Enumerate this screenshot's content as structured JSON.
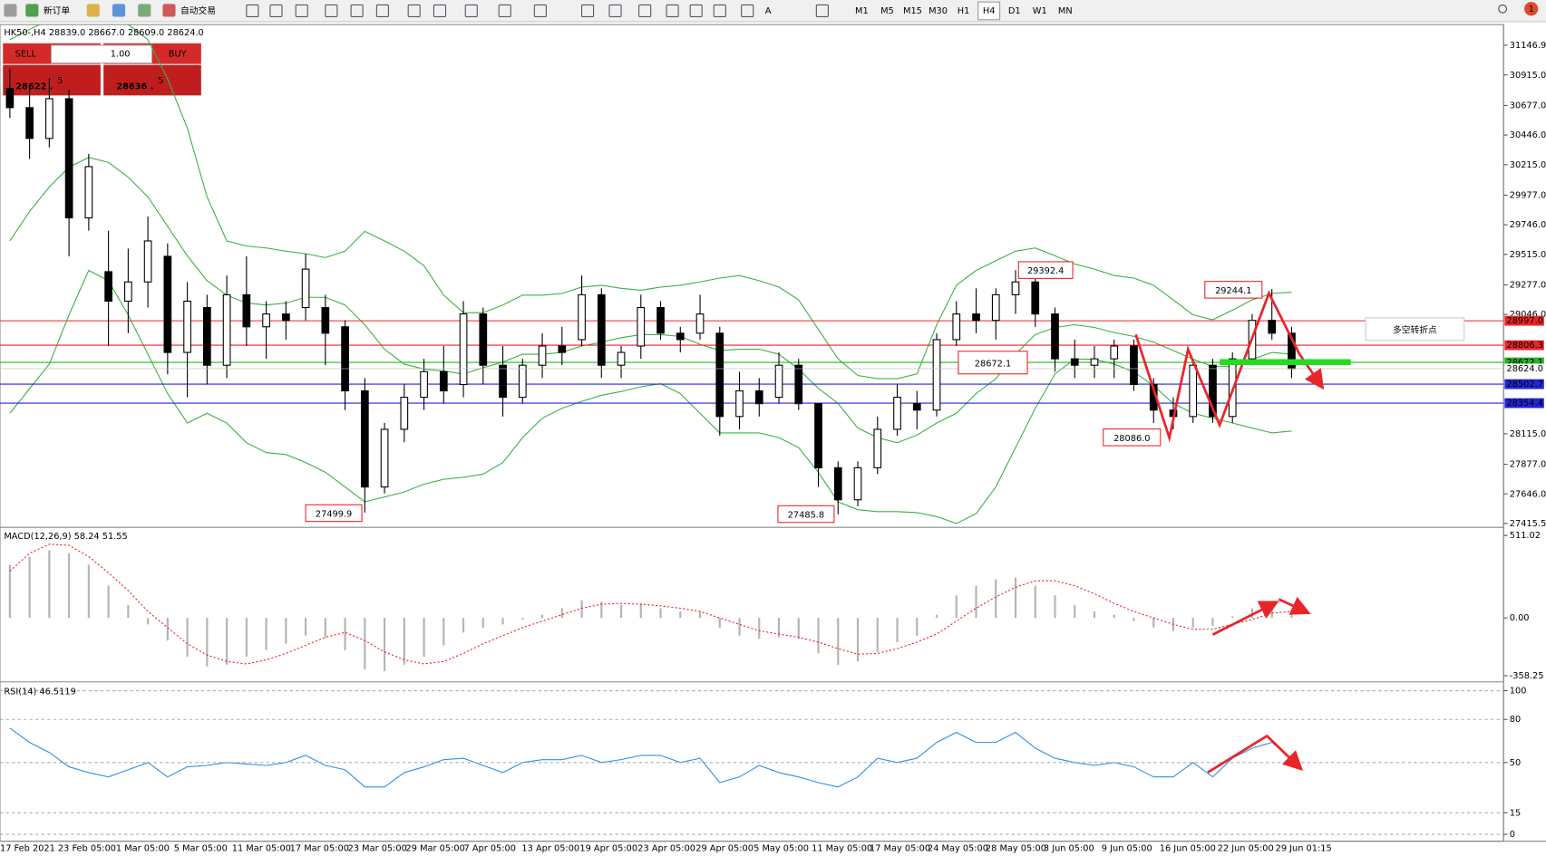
{
  "toolbar": {
    "new_order": "新订单",
    "auto_trading": "自动交易",
    "text_tool": "A",
    "timeframes": [
      "M1",
      "M5",
      "M15",
      "M30",
      "H1",
      "H4",
      "D1",
      "W1",
      "MN"
    ],
    "active_timeframe": 5,
    "notifications": "1"
  },
  "trade_panel": {
    "sell": "SELL",
    "lots": "1.00",
    "buy": "BUY",
    "bid": {
      "main": "28622 .",
      "pip": "5"
    },
    "ask": {
      "main": "28636 .",
      "pip": "5"
    }
  },
  "time_axis": {
    "labels": [
      "17 Feb 2021",
      "23 Feb 05:00",
      "1 Mar 05:00",
      "5 Mar 05:00",
      "11 Mar 05:00",
      "17 Mar 05:00",
      "23 Mar 05:00",
      "29 Mar 05:00",
      "7 Apr 05:00",
      "13 Apr 05:00",
      "19 Apr 05:00",
      "23 Apr 05:00",
      "29 Apr 05:00",
      "5 May 05:00",
      "11 May 05:00",
      "17 May 05:00",
      "24 May 05:00",
      "28 May 05:00",
      "3 Jun 05:00",
      "9 Jun 05:00",
      "16 Jun 05:00",
      "22 Jun 05:00",
      "29 Jun 01:15"
    ]
  },
  "chart_data": [
    {
      "type": "candlestick",
      "title": "HK50-,H4  28839.0 28667.0 28609.0 28624.0",
      "categories": [
        null,
        null,
        null,
        null,
        null,
        null,
        null,
        null,
        null,
        null,
        null,
        null,
        null,
        null,
        null,
        null,
        null,
        null,
        null,
        null,
        null,
        null,
        null,
        null,
        null,
        null,
        null,
        null,
        null,
        null,
        null,
        null,
        null,
        null,
        null,
        null,
        null,
        null,
        null,
        null,
        null,
        null,
        null,
        null,
        null,
        null,
        null,
        null,
        null,
        null,
        null,
        null,
        null,
        null,
        null,
        null,
        null,
        null,
        null,
        null,
        null,
        null,
        null,
        null,
        null,
        null
      ],
      "open": [
        30810,
        30660,
        30420,
        30730,
        29800,
        29380,
        29150,
        29300,
        29500,
        28750,
        29100,
        28650,
        29200,
        28950,
        29050,
        29100,
        29100,
        28950,
        28450,
        27700,
        28150,
        28400,
        28600,
        28500,
        29050,
        28650,
        28400,
        28650,
        28800,
        28850,
        29200,
        28650,
        28800,
        29100,
        28900,
        28900,
        28900,
        28250,
        28450,
        28400,
        28650,
        28350,
        27850,
        27600,
        27850,
        28150,
        28350,
        28300,
        28850,
        29050,
        29000,
        29200,
        29300,
        29050,
        28700,
        28650,
        28700,
        28800,
        28500,
        28300,
        28250,
        28650,
        28250,
        28700,
        29000,
        28900
      ],
      "high": [
        30960,
        30810,
        30890,
        30800,
        30300,
        29700,
        29560,
        29810,
        29600,
        29300,
        29200,
        29350,
        29500,
        29150,
        29150,
        29520,
        29200,
        29000,
        28550,
        28200,
        28500,
        28700,
        28800,
        29150,
        29100,
        28800,
        28700,
        28900,
        28950,
        29350,
        29250,
        28800,
        29200,
        29150,
        28950,
        29200,
        28950,
        28600,
        28550,
        28750,
        28700,
        28350,
        27900,
        27900,
        28250,
        28500,
        28450,
        28900,
        29150,
        29250,
        29250,
        29392,
        29350,
        29100,
        28850,
        28800,
        28850,
        28850,
        28550,
        28400,
        28700,
        28700,
        28750,
        29050,
        29244,
        28950
      ],
      "low": [
        30580,
        30260,
        30350,
        29500,
        29700,
        28800,
        28900,
        29100,
        28580,
        28400,
        28500,
        28550,
        28800,
        28700,
        28850,
        29000,
        28650,
        28300,
        27500,
        27650,
        28050,
        28300,
        28350,
        28400,
        28500,
        28250,
        28350,
        28550,
        28650,
        28800,
        28550,
        28550,
        28700,
        28850,
        28750,
        28850,
        28100,
        28150,
        28250,
        28350,
        28300,
        27700,
        27486,
        27550,
        27800,
        28100,
        28150,
        28250,
        28800,
        28900,
        28850,
        29050,
        28950,
        28600,
        28550,
        28550,
        28550,
        28450,
        28200,
        28150,
        28200,
        28200,
        28200,
        28650,
        28850,
        28550
      ],
      "close": [
        30660,
        30420,
        30730,
        29800,
        30200,
        29150,
        29300,
        29620,
        28750,
        29150,
        28650,
        29200,
        28950,
        29050,
        29000,
        29400,
        28900,
        28450,
        27700,
        28150,
        28400,
        28600,
        28450,
        29050,
        28650,
        28400,
        28650,
        28800,
        28750,
        29200,
        28650,
        28750,
        29100,
        28900,
        28850,
        29050,
        28250,
        28450,
        28350,
        28650,
        28350,
        27850,
        27600,
        27850,
        28150,
        28400,
        28300,
        28850,
        29050,
        29000,
        29200,
        29300,
        29050,
        28700,
        28650,
        28700,
        28800,
        28500,
        28300,
        28250,
        28650,
        28250,
        28700,
        29000,
        28900,
        28624
      ],
      "bands": {
        "color": "#3cb043",
        "upper": [
          31190,
          31270,
          31346,
          31346,
          31346,
          31330,
          31310,
          31190,
          30885,
          30500,
          29964,
          29620,
          29580,
          29565,
          29540,
          29520,
          29490,
          29540,
          29695,
          29620,
          29540,
          29427,
          29197,
          29060,
          29060,
          29120,
          29197,
          29197,
          29210,
          29260,
          29274,
          29250,
          29235,
          29260,
          29274,
          29300,
          29330,
          29350,
          29310,
          29260,
          29160,
          28930,
          28700,
          28570,
          28545,
          28545,
          28582,
          28966,
          29274,
          29390,
          29465,
          29540,
          29565,
          29504,
          29440,
          29400,
          29350,
          29330,
          29274,
          29160,
          29043,
          29005,
          29080,
          29160,
          29210,
          29220
        ],
        "middle": [
          29620,
          29850,
          30041,
          30195,
          30271,
          30233,
          30118,
          29964,
          29734,
          29504,
          29310,
          29197,
          29135,
          29120,
          29135,
          29180,
          29180,
          29120,
          28966,
          28775,
          28659,
          28620,
          28605,
          28582,
          28630,
          28675,
          28736,
          28736,
          28750,
          28800,
          28830,
          28865,
          28889,
          28889,
          28875,
          28813,
          28765,
          28775,
          28775,
          28736,
          28620,
          28470,
          28352,
          28160,
          28085,
          28045,
          28105,
          28199,
          28275,
          28429,
          28545,
          28736,
          28889,
          28945,
          28966,
          28945,
          28905,
          28875,
          28830,
          28765,
          28697,
          28640,
          28640,
          28697,
          28750,
          28736
        ],
        "lower": [
          28275,
          28467,
          28659,
          29043,
          29390,
          29310,
          29043,
          28736,
          28429,
          28199,
          28275,
          28199,
          28045,
          27968,
          27953,
          27891,
          27815,
          27700,
          27584,
          27622,
          27661,
          27722,
          27760,
          27776,
          27800,
          27891,
          28085,
          28237,
          28314,
          28368,
          28415,
          28445,
          28482,
          28506,
          28429,
          28275,
          28122,
          28122,
          28122,
          28085,
          28007,
          27815,
          27584,
          27523,
          27508,
          27508,
          27500,
          27469,
          27415,
          27492,
          27700,
          28007,
          28314,
          28582,
          28697,
          28697,
          28659,
          28598,
          28490,
          28352,
          28275,
          28237,
          28199,
          28160,
          28122,
          28137
        ]
      },
      "ylim": [
        27392.5,
        31308.1
      ],
      "yticks": [
        31146.9,
        {
          "value": 30915,
          "label": "30915.0"
        },
        {
          "value": 30677,
          "label": "30677.0"
        },
        {
          "value": 30446,
          "label": "30446.0"
        },
        {
          "value": 30215,
          "label": "30215.0"
        },
        {
          "value": 29977,
          "label": "29977.0"
        },
        {
          "value": 29746,
          "label": "29746.0"
        },
        {
          "value": 29515,
          "label": "29515.0"
        },
        {
          "value": 29277,
          "label": "29277.0"
        },
        {
          "value": 29046,
          "label": "29046.0"
        },
        {
          "value": 28115,
          "label": "28115.0"
        },
        {
          "value": 27877,
          "label": "27877.0"
        },
        {
          "value": 27646,
          "label": "27646.0"
        },
        27415.5
      ],
      "levels": [
        {
          "value": 28997,
          "label": "28997.0",
          "color": "#e8262a"
        },
        {
          "value": 28806.3,
          "label": "28806.3",
          "color": "#e8262a"
        },
        {
          "value": 28672.1,
          "label": "28672.1",
          "color": "#27b327"
        },
        {
          "value": 28502.7,
          "label": "28502.7",
          "color": "#2424d8"
        },
        {
          "value": 28354.4,
          "label": "28354.4",
          "color": "#2424d8"
        }
      ],
      "current": {
        "value": 28624,
        "label": "28624.0"
      },
      "annotations": [
        "29392.4",
        "29244.1",
        "28672.1",
        "28086.0",
        "27499.9",
        "27485.8",
        "多空转折点"
      ]
    },
    {
      "type": "macd",
      "title": "MACD(12,26,9) 58.24 51.55",
      "histogram": [
        330,
        380,
        420,
        400,
        330,
        200,
        80,
        -40,
        -140,
        -240,
        -300,
        -290,
        -240,
        -200,
        -160,
        -110,
        -120,
        -200,
        -320,
        -330,
        -290,
        -240,
        -170,
        -90,
        -60,
        -40,
        -10,
        20,
        60,
        110,
        100,
        80,
        90,
        60,
        40,
        40,
        -60,
        -110,
        -130,
        -120,
        -130,
        -220,
        -290,
        -270,
        -210,
        -150,
        -110,
        20,
        140,
        200,
        240,
        250,
        200,
        140,
        80,
        40,
        20,
        -20,
        -60,
        -80,
        -60,
        -50,
        10,
        60,
        70,
        40
      ],
      "signal": [
        290,
        400,
        457,
        450,
        380,
        280,
        170,
        40,
        -60,
        -160,
        -230,
        -270,
        -285,
        -260,
        -220,
        -170,
        -120,
        -90,
        -140,
        -210,
        -260,
        -285,
        -270,
        -220,
        -160,
        -110,
        -60,
        -20,
        20,
        60,
        85,
        90,
        85,
        75,
        60,
        40,
        0,
        -40,
        -80,
        -100,
        -120,
        -150,
        -190,
        -225,
        -220,
        -190,
        -150,
        -100,
        -20,
        60,
        130,
        190,
        230,
        230,
        200,
        150,
        90,
        40,
        0,
        -40,
        -70,
        -70,
        -40,
        -10,
        30,
        40
      ],
      "colors": {
        "histogram": "#b4b4b4",
        "signal": "#e8262a"
      },
      "ylim": [
        -390,
        555
      ],
      "yticks": [
        511.02,
        {
          "value": 0,
          "label": "0.00"
        },
        -358.25
      ]
    },
    {
      "type": "rsi",
      "title": "RSI(14) 46.5119",
      "color": "#2f8fe6",
      "values": [
        74,
        64,
        57,
        47,
        43,
        40,
        45,
        50,
        40,
        47,
        48,
        50,
        49,
        48,
        50,
        55,
        48,
        45,
        33,
        33,
        43,
        47,
        52,
        53,
        48,
        43,
        50,
        52,
        52,
        55,
        50,
        52,
        55,
        55,
        50,
        53,
        36,
        40,
        48,
        43,
        40,
        36,
        33,
        40,
        53,
        50,
        53,
        64,
        71,
        64,
        64,
        71,
        60,
        53,
        50,
        48,
        50,
        47,
        40,
        40,
        50,
        40,
        53,
        60,
        64,
        53
      ],
      "ylim": [
        -4.8,
        105.5
      ],
      "yticks": [
        100,
        80,
        50,
        15,
        0
      ]
    }
  ]
}
